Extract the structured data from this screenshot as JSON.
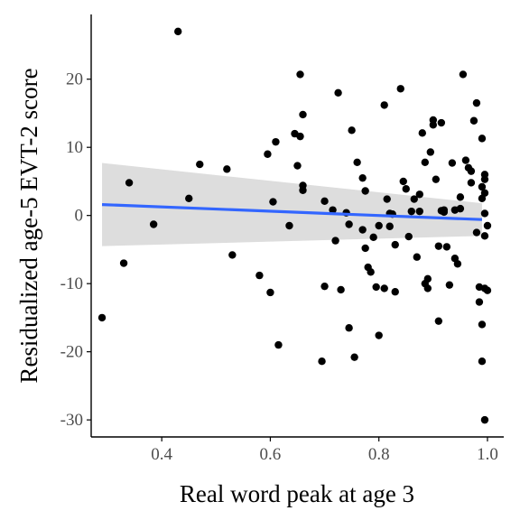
{
  "chart_data": {
    "type": "scatter",
    "title": "",
    "xlabel": "Real word peak at age 3",
    "ylabel": "Residualized age-5 EVT-2 score",
    "xlim": [
      0.27,
      1.03
    ],
    "ylim": [
      -32.5,
      29.5
    ],
    "xticks": [
      0.4,
      0.6,
      0.8,
      1.0
    ],
    "xtick_labels": [
      "0.4",
      "0.6",
      "0.8",
      "1.0"
    ],
    "yticks": [
      -30,
      -20,
      -10,
      0,
      10,
      20
    ],
    "ytick_labels": [
      "-30",
      "-20",
      "-10",
      "0",
      "10",
      "20"
    ],
    "grid": false,
    "legend": "none",
    "colors": {
      "points": "#000000",
      "fit_line": "#3366ff",
      "ribbon": "#d9d9d9"
    },
    "fit": {
      "method": "linear",
      "x": [
        0.29,
        0.99
      ],
      "y": [
        1.6,
        -0.6
      ],
      "ci_lower": [
        -4.5,
        -3.0
      ],
      "ci_upper": [
        7.7,
        1.8
      ]
    },
    "points": {
      "x": [
        0.29,
        0.33,
        0.34,
        0.385,
        0.43,
        0.45,
        0.47,
        0.52,
        0.53,
        0.58,
        0.595,
        0.6,
        0.605,
        0.615,
        0.61,
        0.635,
        0.645,
        0.65,
        0.655,
        0.655,
        0.66,
        0.66,
        0.66,
        0.695,
        0.7,
        0.7,
        0.715,
        0.72,
        0.725,
        0.73,
        0.74,
        0.745,
        0.745,
        0.75,
        0.755,
        0.76,
        0.77,
        0.77,
        0.775,
        0.775,
        0.78,
        0.785,
        0.79,
        0.795,
        0.8,
        0.8,
        0.81,
        0.81,
        0.815,
        0.82,
        0.82,
        0.825,
        0.83,
        0.83,
        0.84,
        0.845,
        0.85,
        0.855,
        0.86,
        0.865,
        0.87,
        0.875,
        0.875,
        0.88,
        0.885,
        0.885,
        0.89,
        0.89,
        0.895,
        0.9,
        0.9,
        0.905,
        0.91,
        0.91,
        0.915,
        0.915,
        0.92,
        0.92,
        0.925,
        0.93,
        0.935,
        0.94,
        0.94,
        0.945,
        0.95,
        0.95,
        0.955,
        0.96,
        0.965,
        0.97,
        0.97,
        0.975,
        0.98,
        0.98,
        0.985,
        0.985,
        0.99,
        0.99,
        0.99,
        0.99,
        0.99,
        0.995,
        0.995,
        0.995,
        0.995,
        0.995,
        0.995,
        0.995,
        1.0,
        1.0
      ],
      "y": [
        -15.0,
        -7.0,
        4.8,
        -1.3,
        27.0,
        2.5,
        7.5,
        6.8,
        -5.8,
        -8.8,
        9.0,
        -11.3,
        2.0,
        -19.0,
        10.8,
        -1.5,
        12.0,
        7.3,
        20.7,
        11.6,
        14.8,
        4.4,
        3.7,
        -21.4,
        -10.4,
        2.1,
        0.8,
        -3.7,
        18.0,
        -10.9,
        0.4,
        -1.3,
        -16.5,
        12.5,
        -20.8,
        7.8,
        -2.1,
        5.5,
        3.6,
        -4.8,
        -7.6,
        -8.3,
        -3.2,
        -10.5,
        -1.5,
        -17.6,
        16.2,
        -10.7,
        2.4,
        0.3,
        -1.6,
        0.2,
        -4.3,
        -11.2,
        18.6,
        5.0,
        3.9,
        -3.1,
        0.6,
        2.4,
        -6.1,
        3.1,
        0.6,
        12.1,
        -10.0,
        7.8,
        -9.3,
        -10.7,
        9.3,
        13.3,
        14.0,
        5.3,
        -4.5,
        -15.5,
        13.6,
        0.7,
        0.5,
        0.8,
        -4.6,
        -10.2,
        7.7,
        -6.3,
        0.8,
        -7.1,
        2.7,
        1.0,
        20.7,
        8.1,
        7.0,
        6.5,
        4.8,
        13.9,
        16.5,
        -2.5,
        -10.5,
        -12.7,
        11.3,
        4.2,
        2.5,
        -16.0,
        -21.4,
        6.0,
        5.3,
        3.3,
        0.3,
        -3.0,
        -10.7,
        -30.0,
        -1.5,
        -11.0
      ]
    }
  }
}
